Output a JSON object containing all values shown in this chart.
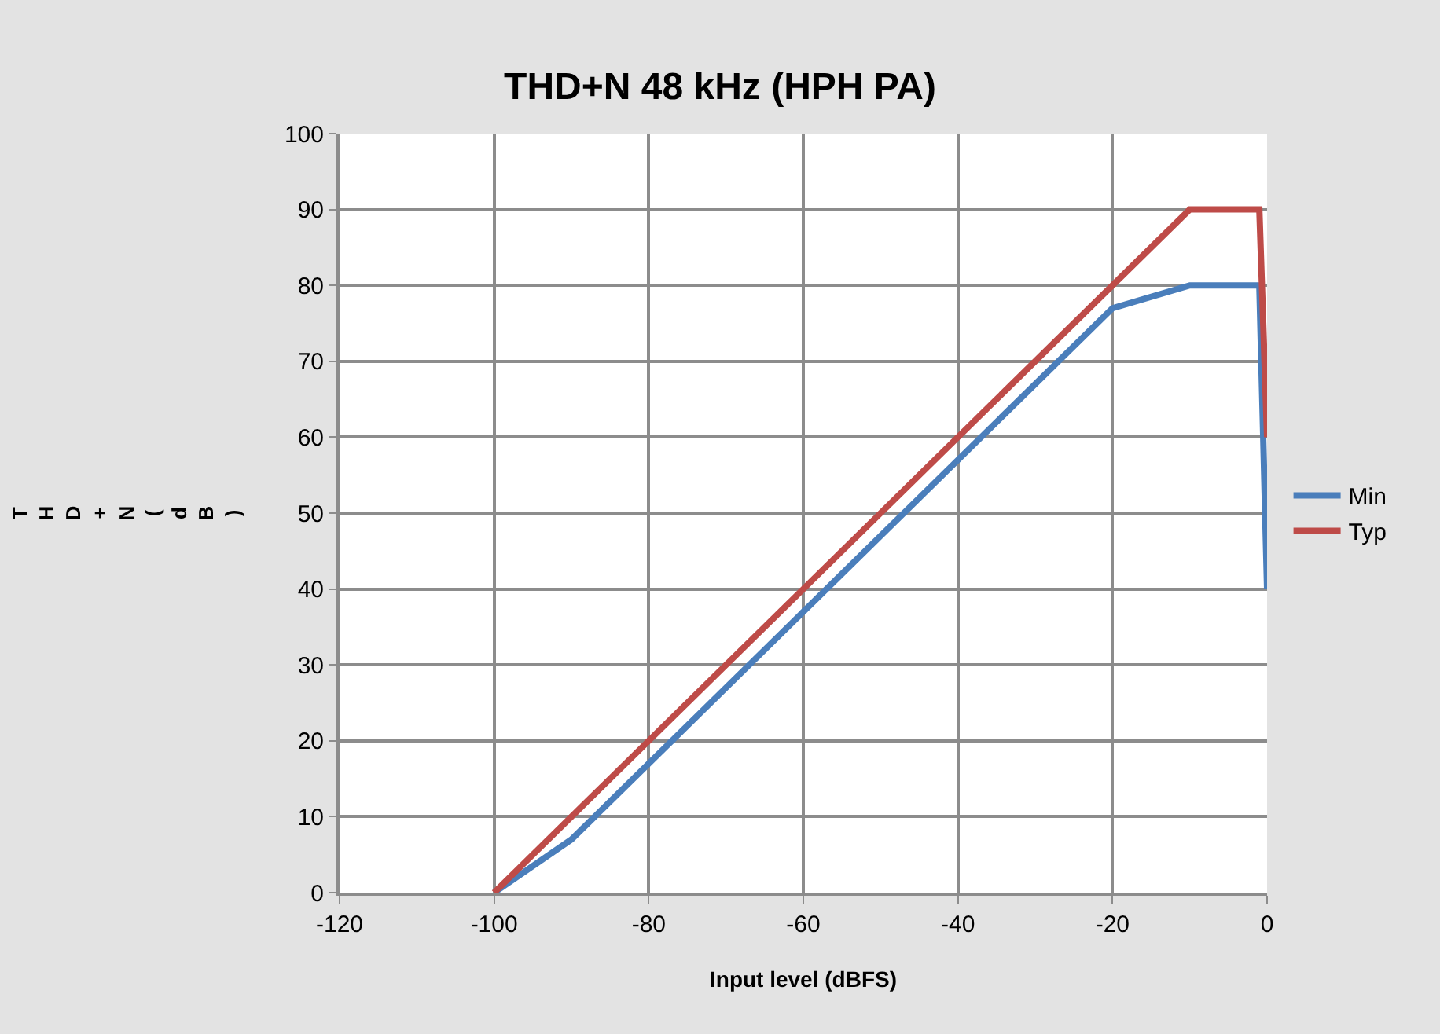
{
  "chart_data": {
    "type": "line",
    "title": "THD+N 48 kHz (HPH PA)",
    "xlabel": "Input level (dBFS)",
    "ylabel": "THD+N (dB)",
    "xlim": [
      -120,
      0
    ],
    "xticks": [
      -120,
      -100,
      -80,
      -60,
      -40,
      -20,
      0
    ],
    "ylim": [
      0,
      100
    ],
    "yticks": [
      0,
      10,
      20,
      30,
      40,
      50,
      60,
      70,
      80,
      90,
      100
    ],
    "grid": true,
    "legend": "right",
    "marker": "none",
    "line_style": "solid",
    "series": [
      {
        "name": "Min",
        "color": "#4a7ebb",
        "x": [
          -100,
          -90,
          -20,
          -10,
          -1,
          0
        ],
        "values": [
          0,
          7,
          77,
          80,
          80,
          40
        ]
      },
      {
        "name": "Typ",
        "color": "#be4b48",
        "x": [
          -100,
          -10,
          -1,
          0
        ],
        "values": [
          0,
          90,
          90,
          60
        ]
      }
    ]
  }
}
